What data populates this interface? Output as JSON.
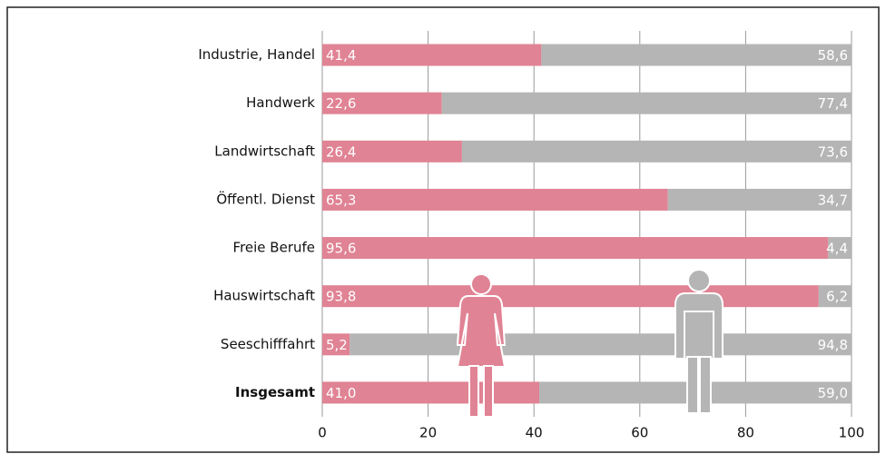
{
  "chart_data": {
    "type": "stacked_bar_horizontal",
    "categories": [
      "Industrie, Handel",
      "Handwerk",
      "Landwirtschaft",
      "Öffentl. Dienst",
      "Freie Berufe",
      "Hauswirtschaft",
      "Seeschifffahrt",
      "Insgesamt"
    ],
    "series": [
      {
        "color": "#e08394",
        "values": [
          41.4,
          22.6,
          26.4,
          65.3,
          95.6,
          93.8,
          5.2,
          41.0
        ],
        "value_labels": [
          "41,4",
          "22,6",
          "26,4",
          "65,3",
          "95,6",
          "93,8",
          "5,2",
          "41,0"
        ]
      },
      {
        "color": "#b5b5b5",
        "values": [
          58.6,
          77.4,
          73.6,
          34.7,
          4.4,
          6.2,
          94.8,
          59.0
        ],
        "value_labels": [
          "58,6",
          "77,4",
          "73,6",
          "34,7",
          "4,4",
          "6,2",
          "94,8",
          "59,0"
        ]
      }
    ],
    "xlim": [
      0,
      100
    ],
    "xticks": [
      0,
      20,
      40,
      60,
      80,
      100
    ],
    "grid": true
  }
}
